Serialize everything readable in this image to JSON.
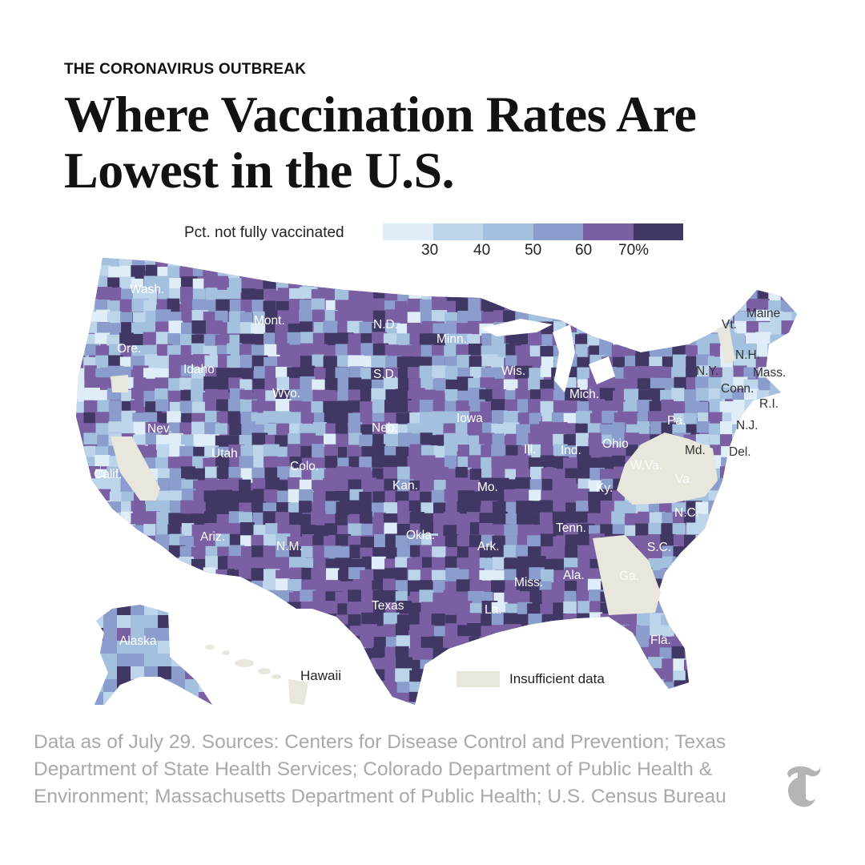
{
  "header": {
    "kicker": "THE CORONAVIRUS OUTBREAK",
    "headline": "Where Vaccination Rates Are Lowest in the U.S."
  },
  "legend": {
    "title": "Pct. not fully vaccinated",
    "ticks": [
      "30",
      "40",
      "50",
      "60",
      "70%"
    ],
    "colors": [
      "#deedf7",
      "#bcd5ea",
      "#a3c0de",
      "#8a9dcc",
      "#7a5fa3",
      "#403764"
    ]
  },
  "insufficient": {
    "label": "Insufficient data",
    "color": "#e9e6de"
  },
  "map": {
    "states": [
      "Wash.",
      "Mont.",
      "N.D.",
      "Minn.",
      "Maine",
      "Vt.",
      "Ore.",
      "Idaho",
      "S.D.",
      "Wis.",
      "N.H.",
      "N.Y.",
      "Mass.",
      "Wyo.",
      "Mich.",
      "Conn.",
      "R.I.",
      "Iowa",
      "Pa.",
      "N.J.",
      "Nev.",
      "Neb.",
      "Ohio",
      "Ill.",
      "Ind.",
      "Md.",
      "Del.",
      "Utah",
      "Colo.",
      "W.Va.",
      "Calif.",
      "Kan.",
      "Mo.",
      "Va.",
      "Ky.",
      "N.C.",
      "Tenn.",
      "Okla.",
      "Ariz.",
      "N.M.",
      "Ark.",
      "S.C.",
      "Ga.",
      "Miss.",
      "Ala.",
      "Texas",
      "La.",
      "Fla.",
      "Alaska"
    ],
    "hawaii_label": "Hawaii"
  },
  "source": "Data as of July 29. Sources: Centers for Disease Control and Prevention; Texas Department of State Health Services; Colorado Department of Public Health & Environment; Massachusetts Department of Public Health; U.S. Census Bureau",
  "logo": "nyt-t-logo"
}
